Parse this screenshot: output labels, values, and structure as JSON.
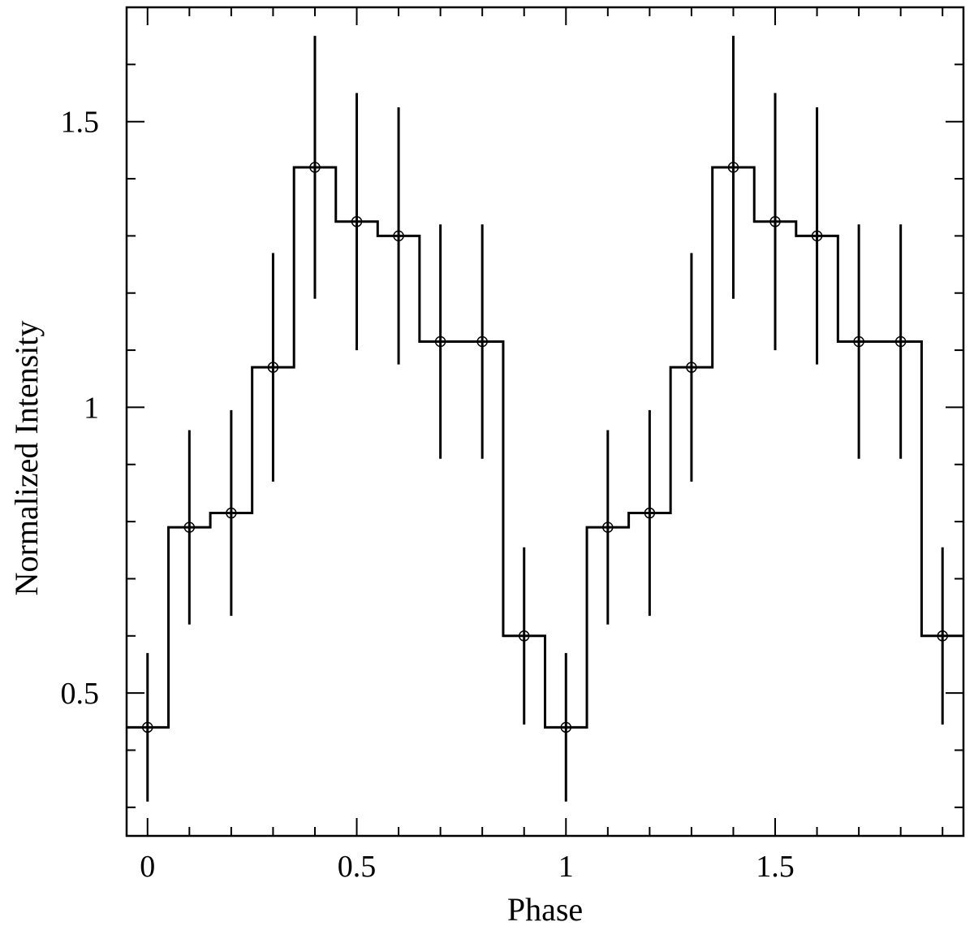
{
  "chart_data": {
    "type": "line",
    "title": "",
    "xlabel": "Phase",
    "ylabel": "Normalized Intensity",
    "xlim": [
      -0.05,
      1.95
    ],
    "ylim": [
      0.25,
      1.7
    ],
    "x_ticks": [
      {
        "value": 0,
        "label": "0"
      },
      {
        "value": 0.5,
        "label": "0.5"
      },
      {
        "value": 1,
        "label": "1"
      },
      {
        "value": 1.5,
        "label": "1.5"
      }
    ],
    "x_minor_step": 0.1,
    "y_ticks": [
      {
        "value": 0.5,
        "label": "0.5"
      },
      {
        "value": 1,
        "label": "1"
      },
      {
        "value": 1.5,
        "label": "1.5"
      }
    ],
    "y_minor_step": 0.1,
    "grid": false,
    "legend": "none",
    "bin_width": 0.1,
    "line_color": "#000000",
    "series": [
      {
        "style": "step-histogram-with-errorbars",
        "points": [
          {
            "x": 0.0,
            "y": 0.44,
            "yerr": 0.13
          },
          {
            "x": 0.1,
            "y": 0.79,
            "yerr": 0.17
          },
          {
            "x": 0.2,
            "y": 0.815,
            "yerr": 0.18
          },
          {
            "x": 0.3,
            "y": 1.07,
            "yerr": 0.2
          },
          {
            "x": 0.4,
            "y": 1.42,
            "yerr": 0.23
          },
          {
            "x": 0.5,
            "y": 1.325,
            "yerr": 0.225
          },
          {
            "x": 0.6,
            "y": 1.3,
            "yerr": 0.225
          },
          {
            "x": 0.7,
            "y": 1.115,
            "yerr": 0.205
          },
          {
            "x": 0.8,
            "y": 1.115,
            "yerr": 0.205
          },
          {
            "x": 0.9,
            "y": 0.6,
            "yerr": 0.155
          },
          {
            "x": 1.0,
            "y": 0.44,
            "yerr": 0.13
          },
          {
            "x": 1.1,
            "y": 0.79,
            "yerr": 0.17
          },
          {
            "x": 1.2,
            "y": 0.815,
            "yerr": 0.18
          },
          {
            "x": 1.3,
            "y": 1.07,
            "yerr": 0.2
          },
          {
            "x": 1.4,
            "y": 1.42,
            "yerr": 0.23
          },
          {
            "x": 1.5,
            "y": 1.325,
            "yerr": 0.225
          },
          {
            "x": 1.6,
            "y": 1.3,
            "yerr": 0.225
          },
          {
            "x": 1.7,
            "y": 1.115,
            "yerr": 0.205
          },
          {
            "x": 1.8,
            "y": 1.115,
            "yerr": 0.205
          },
          {
            "x": 1.9,
            "y": 0.6,
            "yerr": 0.155
          }
        ]
      }
    ]
  }
}
